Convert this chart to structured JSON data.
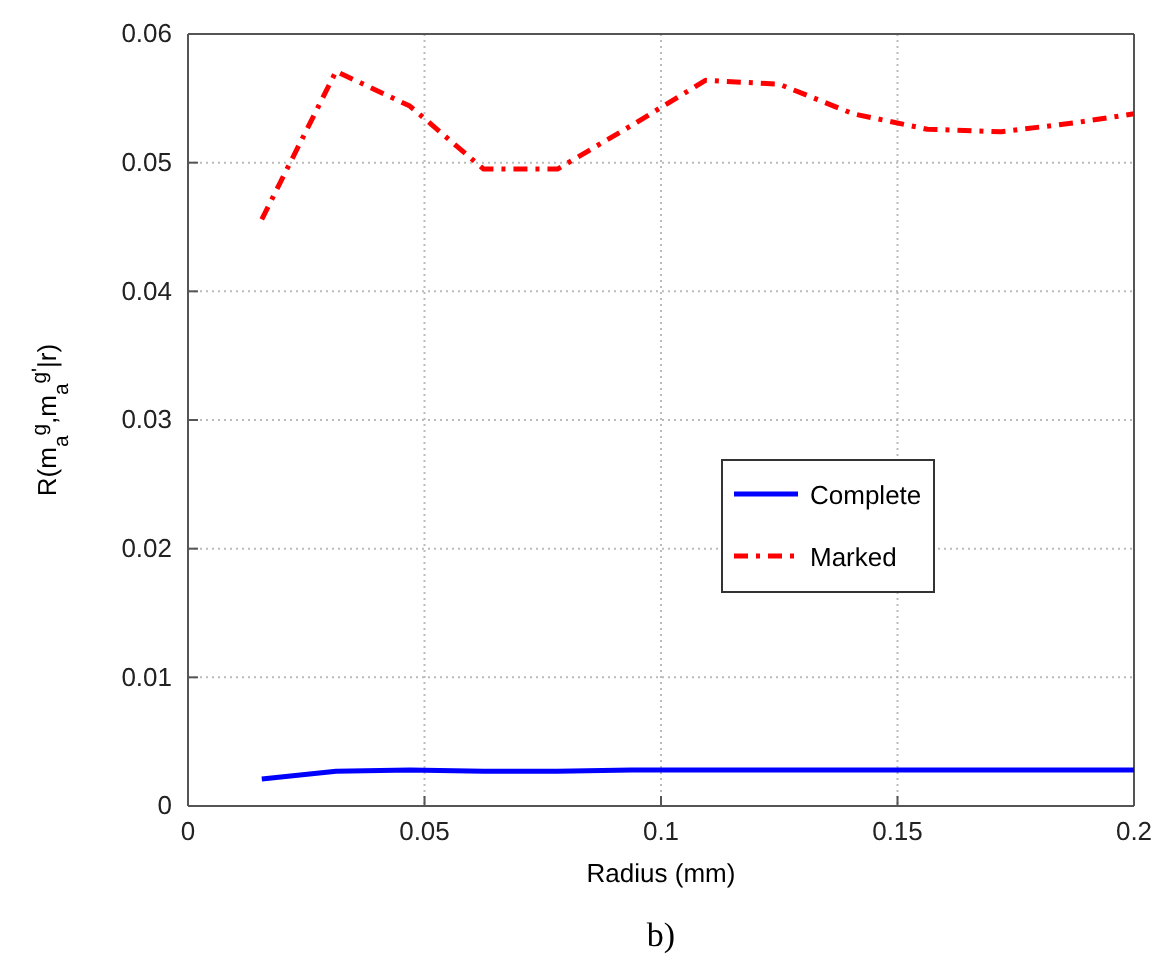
{
  "chart_data": {
    "type": "line",
    "xlabel": "Radius (mm)",
    "ylabel": "R(m$_{a}$$^{g}$,m$_{a}$$^{g'}$|r)",
    "annotations": [
      "b)"
    ],
    "x": [
      0.0156,
      0.0313,
      0.0469,
      0.0625,
      0.0781,
      0.0938,
      0.1094,
      0.125,
      0.1406,
      0.1563,
      0.1719,
      0.1875,
      0.2
    ],
    "series": [
      {
        "name": "Complete",
        "color": "#0000ff",
        "line_style": "solid",
        "values": [
          0.0021,
          0.0027,
          0.0028,
          0.0027,
          0.0027,
          0.0028,
          0.0028,
          0.0028,
          0.0028,
          0.0028,
          0.0028,
          0.0028,
          0.0028
        ]
      },
      {
        "name": "Marked",
        "color": "#ff0000",
        "line_style": "dashed",
        "values": [
          0.0456,
          0.0571,
          0.0544,
          0.0495,
          0.0495,
          0.0529,
          0.0564,
          0.0561,
          0.0538,
          0.0526,
          0.0524,
          0.0531,
          0.0538
        ]
      }
    ],
    "xlim": [
      0,
      0.2
    ],
    "xticks": [
      0,
      0.05,
      0.1,
      0.15,
      0.2
    ],
    "ylim": [
      0,
      0.06
    ],
    "yticks": [
      0,
      0.01,
      0.02,
      0.03,
      0.04,
      0.05,
      0.06
    ],
    "grid": true,
    "legend": "right",
    "marker": "none"
  }
}
